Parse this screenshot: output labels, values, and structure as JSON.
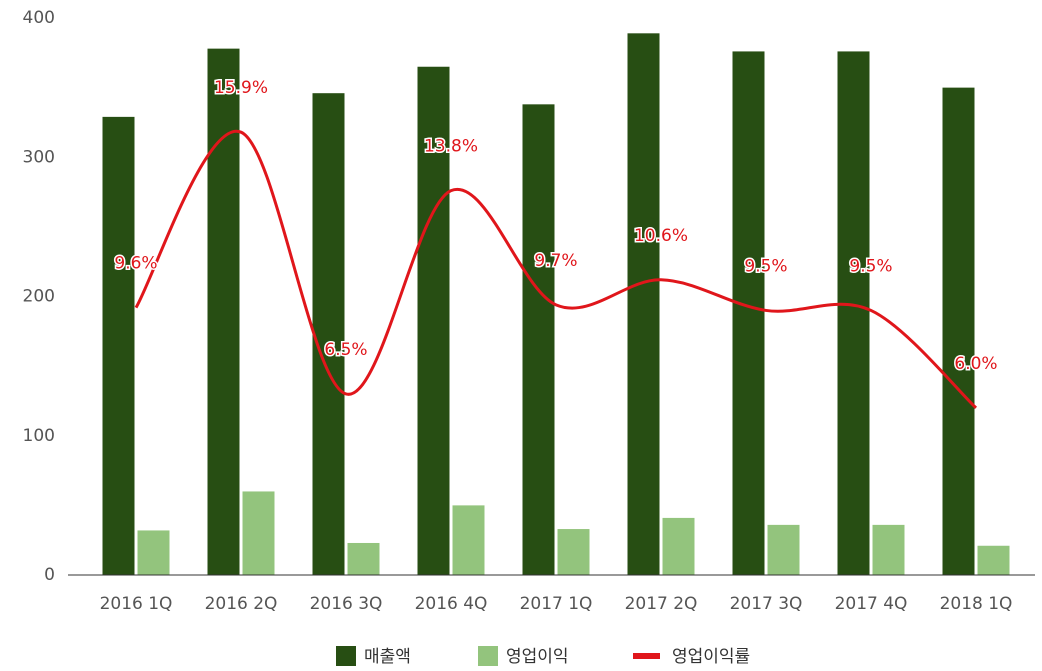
{
  "chart_data": {
    "type": "bar",
    "categories": [
      "2016 1Q",
      "2016 2Q",
      "2016 3Q",
      "2016 4Q",
      "2017 1Q",
      "2017 2Q",
      "2017 3Q",
      "2017 4Q",
      "2018 1Q"
    ],
    "series": [
      {
        "name": "매출액",
        "color": "#274e13",
        "values": [
          329,
          378,
          346,
          365,
          338,
          389,
          376,
          376,
          350
        ]
      },
      {
        "name": "영업이익",
        "color": "#93c47d",
        "values": [
          32,
          60,
          23,
          50,
          33,
          41,
          36,
          36,
          21
        ]
      },
      {
        "name": "영업이익률",
        "color": "#e0161b",
        "type": "line",
        "axis": "y2",
        "values": [
          9.6,
          15.9,
          6.5,
          13.8,
          9.7,
          10.6,
          9.5,
          9.5,
          6.0
        ],
        "value_labels": [
          "9.6%",
          "15.9%",
          "6.5%",
          "13.8%",
          "9.7%",
          "10.6%",
          "9.5%",
          "9.5%",
          "6.0%"
        ]
      }
    ],
    "ylim": [
      0,
      400
    ],
    "yticks": [
      0,
      100,
      200,
      300,
      400
    ],
    "y2lim": [
      0,
      20
    ],
    "grid": false,
    "legend": "bottom"
  }
}
